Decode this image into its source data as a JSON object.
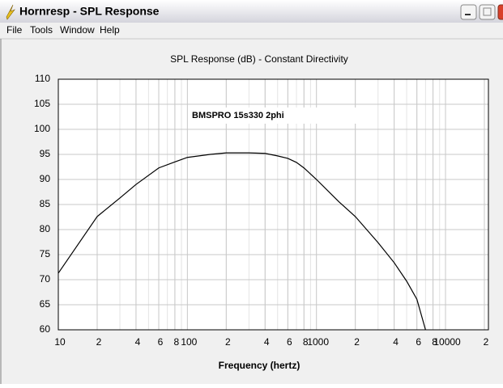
{
  "window": {
    "title": "Hornresp - SPL Response",
    "menu": [
      "File",
      "Tools",
      "Window",
      "Help"
    ]
  },
  "chart_data": {
    "type": "line",
    "title": "SPL Response (dB) - Constant Directivity",
    "x_label": "Frequency (hertz)",
    "annotation": "BMSPRO 15s330 2phi",
    "x": [
      10,
      20,
      30,
      40,
      60,
      80,
      100,
      150,
      200,
      300,
      400,
      500,
      600,
      700,
      800,
      1000,
      1500,
      2000,
      3000,
      4000,
      5000,
      6000,
      7000
    ],
    "values": [
      71.3,
      82.6,
      86.3,
      89,
      92.3,
      93.5,
      94.4,
      95,
      95.3,
      95.3,
      95.2,
      94.7,
      94.2,
      93.4,
      92.3,
      90,
      85.5,
      82.6,
      77.4,
      73.4,
      69.7,
      66.1,
      60
    ],
    "color": "#000000",
    "xlog": true,
    "grid": true,
    "minor_grid": true,
    "xlim": [
      10,
      20000
    ],
    "ylim": [
      60,
      110
    ],
    "xticks": [
      10,
      {
        "value": 20,
        "label": "2"
      },
      {
        "value": 40,
        "label": "4"
      },
      {
        "value": 60,
        "label": "6"
      },
      {
        "value": 80,
        "label": "8"
      },
      100,
      {
        "value": 200,
        "label": "2"
      },
      {
        "value": 400,
        "label": "4"
      },
      {
        "value": 600,
        "label": "6"
      },
      {
        "value": 800,
        "label": "8"
      },
      1000,
      {
        "value": 2000,
        "label": "2"
      },
      {
        "value": 4000,
        "label": "4"
      },
      {
        "value": 6000,
        "label": "6"
      },
      {
        "value": 8000,
        "label": "8"
      },
      10000,
      {
        "value": 20000,
        "label": "2"
      }
    ],
    "yticks": [
      60,
      65,
      70,
      75,
      80,
      85,
      90,
      95,
      100,
      105,
      110
    ]
  }
}
